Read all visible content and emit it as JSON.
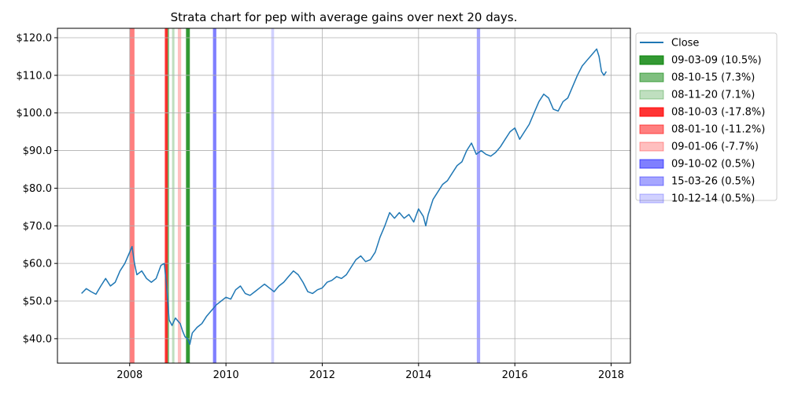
{
  "chart_data": {
    "type": "line",
    "title": "Strata chart for pep with average gains over next 20 days.",
    "xlabel": "",
    "ylabel": "",
    "xlim": [
      2006.5,
      2018.4
    ],
    "ylim": [
      33.5,
      122.5
    ],
    "x_ticks": [
      2008,
      2010,
      2012,
      2014,
      2016,
      2018
    ],
    "x_tick_labels": [
      "2008",
      "2010",
      "2012",
      "2014",
      "2016",
      "2018"
    ],
    "y_ticks": [
      40,
      50,
      60,
      70,
      80,
      90,
      100,
      110,
      120
    ],
    "y_tick_labels": [
      "$40.0",
      "$50.0",
      "$60.0",
      "$70.0",
      "$80.0",
      "$90.0",
      "$100.0",
      "$110.0",
      "$120.0"
    ],
    "grid": true,
    "legend_position": "outside-right",
    "series": [
      {
        "name": "Close",
        "color": "#1f77b4",
        "points": [
          [
            2007.0,
            52.0
          ],
          [
            2007.1,
            53.3
          ],
          [
            2007.2,
            52.5
          ],
          [
            2007.3,
            51.8
          ],
          [
            2007.4,
            54.0
          ],
          [
            2007.5,
            56.0
          ],
          [
            2007.6,
            54.0
          ],
          [
            2007.7,
            55.0
          ],
          [
            2007.8,
            58.0
          ],
          [
            2007.9,
            60.0
          ],
          [
            2008.0,
            63.0
          ],
          [
            2008.05,
            64.5
          ],
          [
            2008.1,
            60.0
          ],
          [
            2008.15,
            57.0
          ],
          [
            2008.25,
            58.0
          ],
          [
            2008.35,
            56.0
          ],
          [
            2008.45,
            55.0
          ],
          [
            2008.55,
            56.0
          ],
          [
            2008.65,
            59.5
          ],
          [
            2008.72,
            60.0
          ],
          [
            2008.78,
            52.0
          ],
          [
            2008.82,
            45.0
          ],
          [
            2008.88,
            43.5
          ],
          [
            2008.95,
            45.5
          ],
          [
            2009.05,
            44.0
          ],
          [
            2009.1,
            42.0
          ],
          [
            2009.15,
            40.5
          ],
          [
            2009.2,
            40.0
          ],
          [
            2009.25,
            38.5
          ],
          [
            2009.3,
            41.5
          ],
          [
            2009.4,
            43.0
          ],
          [
            2009.5,
            44.0
          ],
          [
            2009.6,
            46.0
          ],
          [
            2009.7,
            47.5
          ],
          [
            2009.8,
            49.0
          ],
          [
            2009.9,
            50.0
          ],
          [
            2010.0,
            51.0
          ],
          [
            2010.1,
            50.5
          ],
          [
            2010.2,
            53.0
          ],
          [
            2010.3,
            54.0
          ],
          [
            2010.4,
            52.0
          ],
          [
            2010.5,
            51.5
          ],
          [
            2010.6,
            52.5
          ],
          [
            2010.7,
            53.5
          ],
          [
            2010.8,
            54.5
          ],
          [
            2010.9,
            53.5
          ],
          [
            2011.0,
            52.5
          ],
          [
            2011.1,
            54.0
          ],
          [
            2011.2,
            55.0
          ],
          [
            2011.3,
            56.5
          ],
          [
            2011.4,
            58.0
          ],
          [
            2011.5,
            57.0
          ],
          [
            2011.6,
            55.0
          ],
          [
            2011.7,
            52.5
          ],
          [
            2011.8,
            52.0
          ],
          [
            2011.9,
            53.0
          ],
          [
            2012.0,
            53.5
          ],
          [
            2012.1,
            55.0
          ],
          [
            2012.2,
            55.5
          ],
          [
            2012.3,
            56.5
          ],
          [
            2012.4,
            56.0
          ],
          [
            2012.5,
            57.0
          ],
          [
            2012.6,
            59.0
          ],
          [
            2012.7,
            61.0
          ],
          [
            2012.8,
            62.0
          ],
          [
            2012.9,
            60.5
          ],
          [
            2013.0,
            61.0
          ],
          [
            2013.1,
            63.0
          ],
          [
            2013.2,
            67.0
          ],
          [
            2013.3,
            70.0
          ],
          [
            2013.4,
            73.5
          ],
          [
            2013.5,
            72.0
          ],
          [
            2013.6,
            73.5
          ],
          [
            2013.7,
            72.0
          ],
          [
            2013.8,
            73.0
          ],
          [
            2013.9,
            71.0
          ],
          [
            2014.0,
            74.5
          ],
          [
            2014.1,
            72.5
          ],
          [
            2014.15,
            70.0
          ],
          [
            2014.2,
            73.0
          ],
          [
            2014.3,
            77.0
          ],
          [
            2014.4,
            79.0
          ],
          [
            2014.5,
            81.0
          ],
          [
            2014.6,
            82.0
          ],
          [
            2014.7,
            84.0
          ],
          [
            2014.8,
            86.0
          ],
          [
            2014.9,
            87.0
          ],
          [
            2015.0,
            90.0
          ],
          [
            2015.1,
            92.0
          ],
          [
            2015.2,
            89.0
          ],
          [
            2015.3,
            90.0
          ],
          [
            2015.4,
            89.0
          ],
          [
            2015.5,
            88.5
          ],
          [
            2015.6,
            89.5
          ],
          [
            2015.7,
            91.0
          ],
          [
            2015.8,
            93.0
          ],
          [
            2015.9,
            95.0
          ],
          [
            2016.0,
            96.0
          ],
          [
            2016.1,
            93.0
          ],
          [
            2016.2,
            95.0
          ],
          [
            2016.3,
            97.0
          ],
          [
            2016.4,
            100.0
          ],
          [
            2016.5,
            103.0
          ],
          [
            2016.6,
            105.0
          ],
          [
            2016.7,
            104.0
          ],
          [
            2016.8,
            101.0
          ],
          [
            2016.9,
            100.5
          ],
          [
            2017.0,
            103.0
          ],
          [
            2017.1,
            104.0
          ],
          [
            2017.2,
            107.0
          ],
          [
            2017.3,
            110.0
          ],
          [
            2017.4,
            112.5
          ],
          [
            2017.5,
            114.0
          ],
          [
            2017.6,
            115.5
          ],
          [
            2017.7,
            117.0
          ],
          [
            2017.75,
            115.0
          ],
          [
            2017.8,
            111.0
          ],
          [
            2017.85,
            110.0
          ],
          [
            2017.9,
            111.0
          ]
        ]
      }
    ],
    "bands": [
      {
        "label": "09-03-09 (10.5%)",
        "color": "#008000",
        "alpha": 0.8,
        "x_start": 2009.17,
        "x_end": 2009.25
      },
      {
        "label": "08-10-15 (7.3%)",
        "color": "#008000",
        "alpha": 0.5,
        "x_start": 2008.77,
        "x_end": 2008.82
      },
      {
        "label": "08-11-20 (7.1%)",
        "color": "#008000",
        "alpha": 0.25,
        "x_start": 2008.88,
        "x_end": 2008.93
      },
      {
        "label": "08-10-03 (-17.8%)",
        "color": "#ff0000",
        "alpha": 0.8,
        "x_start": 2008.73,
        "x_end": 2008.79
      },
      {
        "label": "08-01-10 (-11.2%)",
        "color": "#ff0000",
        "alpha": 0.5,
        "x_start": 2008.0,
        "x_end": 2008.1
      },
      {
        "label": "09-01-06 (-7.7%)",
        "color": "#ff0000",
        "alpha": 0.25,
        "x_start": 2009.0,
        "x_end": 2009.07
      },
      {
        "label": "09-10-02 (0.5%)",
        "color": "#0000ff",
        "alpha": 0.5,
        "x_start": 2009.73,
        "x_end": 2009.8
      },
      {
        "label": "15-03-26 (0.5%)",
        "color": "#0000ff",
        "alpha": 0.35,
        "x_start": 2015.21,
        "x_end": 2015.28
      },
      {
        "label": "10-12-14 (0.5%)",
        "color": "#0000ff",
        "alpha": 0.18,
        "x_start": 2010.94,
        "x_end": 2011.0
      }
    ]
  }
}
